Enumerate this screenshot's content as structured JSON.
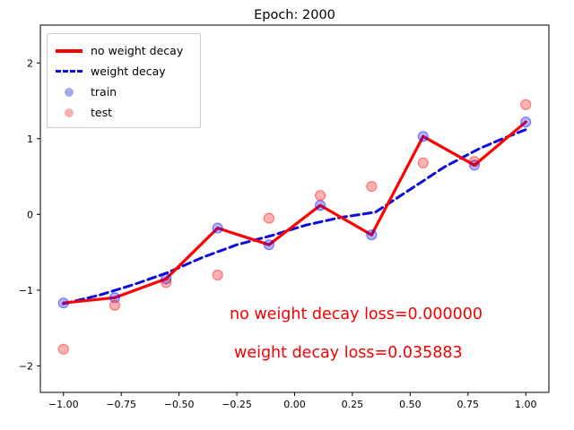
{
  "title": "Epoch: 2000",
  "annotations": {
    "color": "#f40000",
    "line1": "no weight decay loss=0.000000",
    "line2": "weight decay loss=0.035883"
  },
  "legend": {
    "items": [
      {
        "label": "no weight decay",
        "type": "line",
        "color": "#ff0000",
        "dash": false
      },
      {
        "label": "weight decay",
        "type": "line",
        "color": "#0b0bdb",
        "dash": true
      },
      {
        "label": "train",
        "type": "marker",
        "color": "#5a64e0"
      },
      {
        "label": "test",
        "type": "marker",
        "color": "#ef6f6f"
      }
    ]
  },
  "chart_data": {
    "type": "line",
    "title": "Epoch: 2000",
    "xlabel": "",
    "ylabel": "",
    "xlim": [
      -1.1,
      1.1
    ],
    "ylim": [
      -2.35,
      2.5
    ],
    "xticks": [
      -1.0,
      -0.75,
      -0.5,
      -0.25,
      0.0,
      0.25,
      0.5,
      0.75,
      1.0
    ],
    "xtick_labels": [
      "−1.00",
      "−0.75",
      "−0.50",
      "−0.25",
      "0.00",
      "0.25",
      "0.50",
      "0.75",
      "1.00"
    ],
    "yticks": [
      -2,
      -1,
      0,
      1,
      2
    ],
    "ytick_labels": [
      "−2",
      "−1",
      "0",
      "1",
      "2"
    ],
    "grid": false,
    "legend_position": "upper left",
    "series": [
      {
        "name": "weight decay",
        "kind": "line",
        "color": "#0b0bdb",
        "width": 3,
        "dash": "9 5",
        "points": [
          [
            -1.0,
            -1.18
          ],
          [
            -0.85,
            -1.07
          ],
          [
            -0.7,
            -0.93
          ],
          [
            -0.55,
            -0.77
          ],
          [
            -0.4,
            -0.57
          ],
          [
            -0.25,
            -0.4
          ],
          [
            -0.1,
            -0.28
          ],
          [
            0.05,
            -0.14
          ],
          [
            0.2,
            -0.04
          ],
          [
            0.35,
            0.03
          ],
          [
            0.5,
            0.33
          ],
          [
            0.65,
            0.63
          ],
          [
            0.8,
            0.87
          ],
          [
            0.9,
            1.0
          ],
          [
            1.0,
            1.12
          ]
        ]
      },
      {
        "name": "no weight decay",
        "kind": "line",
        "color": "#ff0000",
        "width": 3.2,
        "dash": null,
        "points": [
          [
            -1.0,
            -1.17
          ],
          [
            -0.778,
            -1.1
          ],
          [
            -0.556,
            -0.85
          ],
          [
            -0.333,
            -0.18
          ],
          [
            -0.111,
            -0.4
          ],
          [
            0.111,
            0.12
          ],
          [
            0.333,
            -0.27
          ],
          [
            0.556,
            1.03
          ],
          [
            0.778,
            0.65
          ],
          [
            1.0,
            1.22
          ]
        ]
      },
      {
        "name": "train",
        "kind": "scatter",
        "color": "#0000ff",
        "points": [
          [
            -1.0,
            -1.17
          ],
          [
            -0.778,
            -1.1
          ],
          [
            -0.556,
            -0.85
          ],
          [
            -0.333,
            -0.18
          ],
          [
            -0.111,
            -0.4
          ],
          [
            0.111,
            0.12
          ],
          [
            0.333,
            -0.27
          ],
          [
            0.556,
            1.03
          ],
          [
            0.778,
            0.65
          ],
          [
            1.0,
            1.22
          ]
        ]
      },
      {
        "name": "test",
        "kind": "scatter",
        "color": "#ff0000",
        "points": [
          [
            -1.0,
            -1.78
          ],
          [
            -0.778,
            -1.2
          ],
          [
            -0.556,
            -0.9
          ],
          [
            -0.333,
            -0.8
          ],
          [
            -0.111,
            -0.05
          ],
          [
            0.111,
            0.25
          ],
          [
            0.333,
            0.37
          ],
          [
            0.556,
            0.68
          ],
          [
            0.778,
            0.7
          ],
          [
            1.0,
            1.45
          ]
        ]
      }
    ]
  }
}
